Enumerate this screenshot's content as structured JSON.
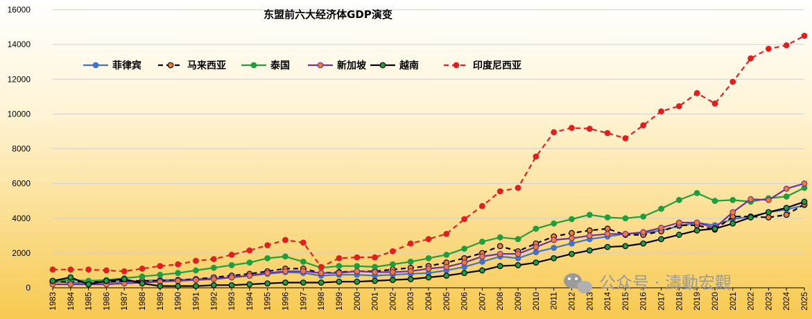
{
  "chart_data": {
    "type": "line",
    "title": "东盟前六大经济体GDP演变",
    "xlabel": "",
    "ylabel": "",
    "ylim": [
      0,
      16000
    ],
    "yticks": [
      0,
      2000,
      4000,
      6000,
      8000,
      10000,
      12000,
      14000,
      16000
    ],
    "grid": true,
    "legend_position": "top-left",
    "x": [
      "1983",
      "1984",
      "1985",
      "1986",
      "1987",
      "1988",
      "1989",
      "1990",
      "1991",
      "1992",
      "1993",
      "1994",
      "1995",
      "1996",
      "1997",
      "1998",
      "1999",
      "2000",
      "2001",
      "2002",
      "2003",
      "2004",
      "2005",
      "2006",
      "2007",
      "2008",
      "2009",
      "2010",
      "2011",
      "2012",
      "2013",
      "2014",
      "2015",
      "2016",
      "2017",
      "2018",
      "2019",
      "2020",
      "2021",
      "2022",
      "2023",
      "2024",
      "2025"
    ],
    "series": [
      {
        "name": "菲律宾",
        "color": "#4472c4",
        "marker_fill": "#4472c4",
        "dashed": false,
        "values": [
          350,
          300,
          300,
          300,
          350,
          400,
          450,
          450,
          500,
          550,
          600,
          700,
          800,
          900,
          850,
          700,
          750,
          750,
          700,
          750,
          800,
          850,
          1000,
          1200,
          1500,
          1800,
          1700,
          2050,
          2300,
          2550,
          2800,
          2950,
          3100,
          3150,
          3300,
          3550,
          3750,
          3600,
          3950,
          4100,
          4350,
          4500,
          4750
        ]
      },
      {
        "name": "马来西亚",
        "color": "#000000",
        "marker_fill": "#ed7d31",
        "dashed": true,
        "values": [
          350,
          350,
          350,
          350,
          400,
          400,
          400,
          450,
          500,
          600,
          700,
          800,
          950,
          1100,
          1100,
          850,
          900,
          950,
          950,
          1050,
          1150,
          1250,
          1450,
          1700,
          2000,
          2400,
          2100,
          2550,
          2950,
          3150,
          3300,
          3400,
          3050,
          3050,
          3250,
          3600,
          3600,
          3350,
          4100,
          4100,
          4050,
          4200,
          4800
        ]
      },
      {
        "name": "泰国",
        "color": "#1e9e3c",
        "marker_fill": "#1e9e3c",
        "dashed": false,
        "values": [
          400,
          450,
          400,
          450,
          550,
          650,
          750,
          850,
          1000,
          1150,
          1300,
          1450,
          1700,
          1800,
          1500,
          1150,
          1250,
          1250,
          1200,
          1350,
          1500,
          1700,
          1900,
          2250,
          2650,
          2900,
          2800,
          3400,
          3700,
          3950,
          4200,
          4050,
          4000,
          4100,
          4550,
          5050,
          5450,
          5000,
          5050,
          4950,
          5150,
          5250,
          5750
        ]
      },
      {
        "name": "新加坡",
        "color": "#7030a0",
        "marker_fill": "#ed7d31",
        "dashed": false,
        "values": [
          200,
          200,
          200,
          200,
          250,
          300,
          350,
          400,
          450,
          500,
          600,
          700,
          850,
          950,
          950,
          850,
          850,
          950,
          900,
          900,
          950,
          1100,
          1200,
          1450,
          1800,
          1950,
          1950,
          2350,
          2750,
          2850,
          3000,
          3100,
          3100,
          3200,
          3450,
          3750,
          3750,
          3450,
          4350,
          5100,
          5050,
          5700,
          6000
        ]
      },
      {
        "name": "越南",
        "color": "#000000",
        "marker_fill": "#1e9e3c",
        "dashed": false,
        "values": [
          400,
          600,
          200,
          400,
          500,
          250,
          100,
          100,
          100,
          150,
          150,
          200,
          250,
          300,
          300,
          300,
          350,
          350,
          400,
          450,
          500,
          600,
          700,
          850,
          1000,
          1250,
          1300,
          1450,
          1700,
          1950,
          2150,
          2350,
          2400,
          2550,
          2800,
          3050,
          3300,
          3400,
          3700,
          4050,
          4350,
          4600,
          4950
        ]
      },
      {
        "name": "印度尼西亚",
        "color": "#e02020",
        "marker_fill": "#e02020",
        "dashed": true,
        "values": [
          1050,
          1050,
          1050,
          1000,
          950,
          1100,
          1250,
          1350,
          1550,
          1650,
          1900,
          2150,
          2450,
          2750,
          2600,
          1200,
          1700,
          1750,
          1750,
          2100,
          2550,
          2800,
          3100,
          3950,
          4700,
          5550,
          5750,
          7550,
          8950,
          9200,
          9150,
          8900,
          8600,
          9350,
          10150,
          10450,
          11200,
          10600,
          11850,
          13200,
          13750,
          13950,
          14500
        ]
      }
    ]
  },
  "watermark": "公众号 · 濤動宏觀"
}
